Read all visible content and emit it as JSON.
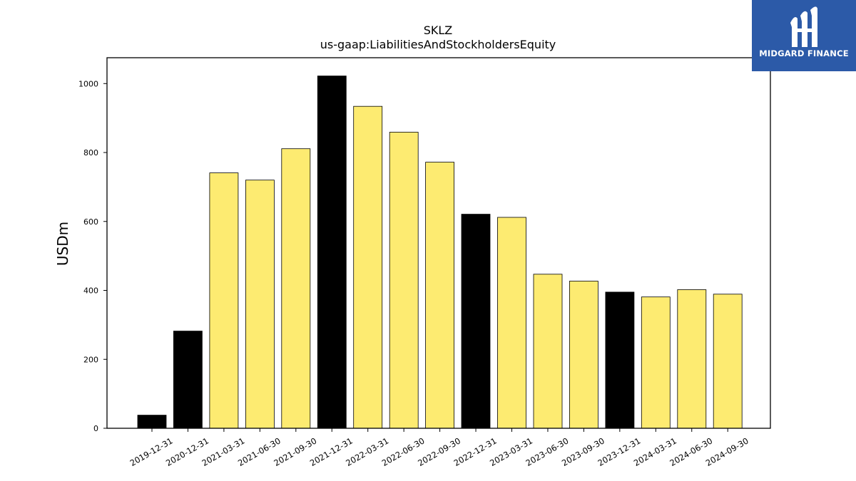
{
  "chart_data": {
    "type": "bar",
    "title": "SKLZ",
    "subtitle": "us-gaap:LiabilitiesAndStockholdersEquity",
    "ylabel": "USDm",
    "xlabel": "",
    "ylim": [
      0,
      1075
    ],
    "yticks": [
      0,
      200,
      400,
      600,
      800,
      1000
    ],
    "categories": [
      "2019-12-31",
      "2020-12-31",
      "2021-03-31",
      "2021-06-30",
      "2021-09-30",
      "2021-12-31",
      "2022-03-31",
      "2022-06-30",
      "2022-09-30",
      "2022-12-31",
      "2023-03-31",
      "2023-06-30",
      "2023-09-30",
      "2023-12-31",
      "2024-03-31",
      "2024-06-30",
      "2024-09-30"
    ],
    "values": [
      38,
      282,
      741,
      720,
      811,
      1022,
      934,
      859,
      772,
      621,
      612,
      447,
      427,
      395,
      381,
      402,
      389
    ],
    "annual": [
      true,
      true,
      false,
      false,
      false,
      true,
      false,
      false,
      false,
      true,
      false,
      false,
      false,
      true,
      false,
      false,
      false
    ],
    "colors": {
      "annual": "#000000",
      "quarterly": "#fdeb71",
      "edge": "#000000"
    },
    "grid": false,
    "legend": "none"
  },
  "logo": {
    "text": "MIDGARD FINANCE",
    "icon": "midgard-logo-icon",
    "background": "#2c5aa8"
  }
}
